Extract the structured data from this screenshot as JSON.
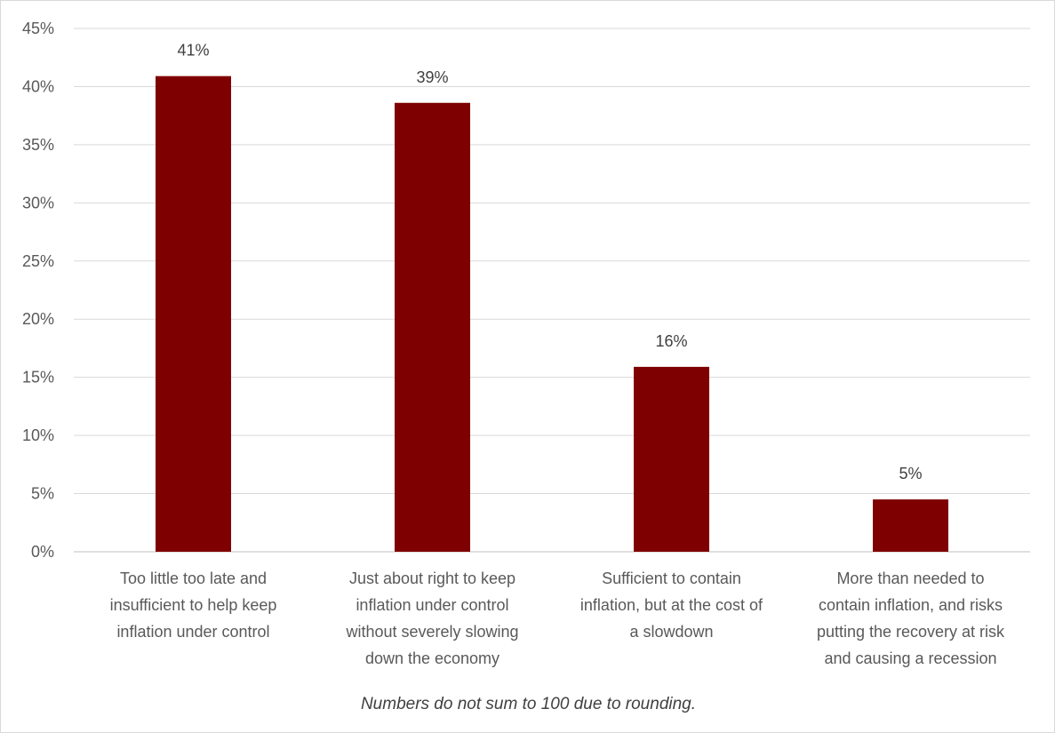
{
  "chart_data": {
    "type": "bar",
    "categories": [
      [
        "Too little too late and",
        "insufficient to help keep",
        "inflation under control"
      ],
      [
        "Just about right to keep",
        "inflation under control",
        "without severely slowing",
        "down the economy"
      ],
      [
        "Sufficient to contain",
        "inflation, but at the cost of",
        "a slowdown"
      ],
      [
        "More than needed to",
        "contain inflation, and risks",
        "putting the recovery at risk",
        "and causing a recession"
      ]
    ],
    "values": [
      41,
      39,
      16,
      5
    ],
    "plotted_values": [
      40.9,
      38.6,
      15.9,
      4.5
    ],
    "data_labels": [
      "41%",
      "39%",
      "16%",
      "5%"
    ],
    "ylim": [
      0,
      45
    ],
    "yticks": [
      0,
      5,
      10,
      15,
      20,
      25,
      30,
      35,
      40,
      45
    ],
    "ytick_labels": [
      "0%",
      "5%",
      "10%",
      "15%",
      "20%",
      "25%",
      "30%",
      "35%",
      "40%",
      "45%"
    ],
    "grid": true,
    "bar_color": "#7f0000",
    "footnote": "Numbers do not sum to 100 due to rounding."
  }
}
